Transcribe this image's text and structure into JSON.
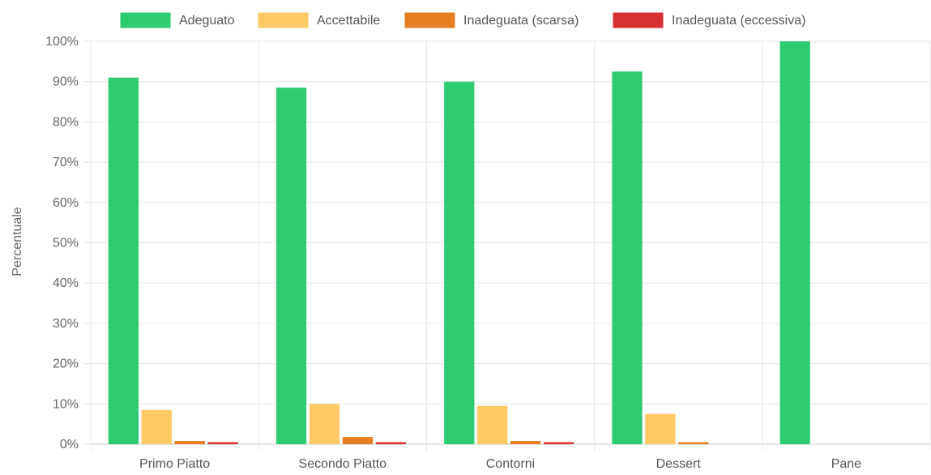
{
  "chart_data": {
    "type": "bar",
    "title": "",
    "xlabel": "",
    "ylabel": "Percentuale",
    "ylim": [
      0,
      100
    ],
    "yticks": [
      "0%",
      "10%",
      "20%",
      "30%",
      "40%",
      "50%",
      "60%",
      "70%",
      "80%",
      "90%",
      "100%"
    ],
    "grid": true,
    "legend_position": "top",
    "categories": [
      "Primo Piatto",
      "Secondo Piatto",
      "Contorni",
      "Dessert",
      "Pane"
    ],
    "series": [
      {
        "name": "Adeguato",
        "color": "#2ecc71",
        "values": [
          91,
          88.5,
          90,
          92.5,
          100
        ]
      },
      {
        "name": "Accettabile",
        "color": "#ffc966",
        "values": [
          8.5,
          10,
          9.5,
          7.5,
          0
        ]
      },
      {
        "name": "Inadeguata (scarsa)",
        "color": "#e67e22",
        "values": [
          0.8,
          1.8,
          0.8,
          0.5,
          0
        ]
      },
      {
        "name": "Inadeguata (eccessiva)",
        "color": "#d63031",
        "values": [
          0.5,
          0.5,
          0.5,
          0,
          0
        ]
      }
    ]
  }
}
